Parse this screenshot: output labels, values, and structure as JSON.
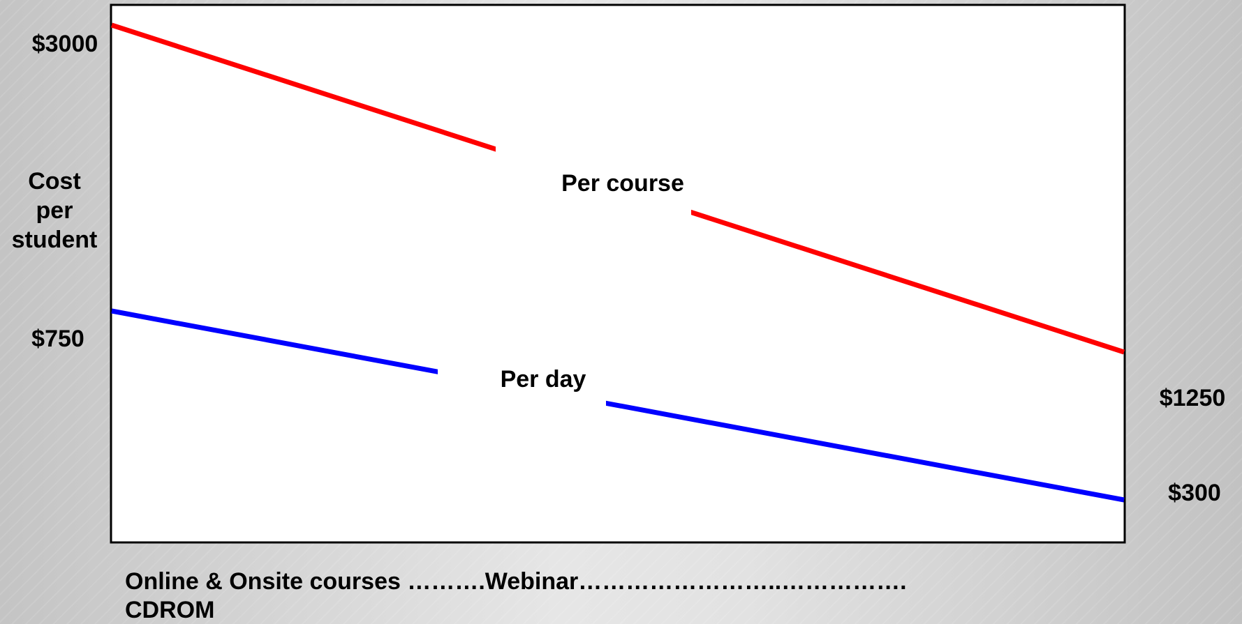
{
  "y_axis_label": [
    "Cost",
    "per",
    "student"
  ],
  "series": [
    {
      "name": "Per course",
      "color": "#ff0000",
      "start_label": "$3000",
      "end_label": "$1250"
    },
    {
      "name": "Per day",
      "color": "#0000ff",
      "start_label": "$750",
      "end_label": "$300"
    }
  ],
  "x_axis_label": [
    "Online & Onsite courses ……….Webinar……………………..…………….",
    "CDROM"
  ]
}
